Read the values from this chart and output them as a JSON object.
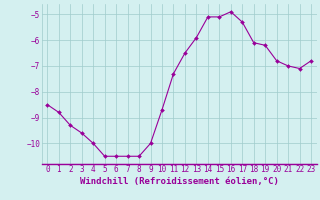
{
  "x": [
    0,
    1,
    2,
    3,
    4,
    5,
    6,
    7,
    8,
    9,
    10,
    11,
    12,
    13,
    14,
    15,
    16,
    17,
    18,
    19,
    20,
    21,
    22,
    23
  ],
  "y": [
    -8.5,
    -8.8,
    -9.3,
    -9.6,
    -10.0,
    -10.5,
    -10.5,
    -10.5,
    -10.5,
    -10.0,
    -8.7,
    -7.3,
    -6.5,
    -5.9,
    -5.1,
    -5.1,
    -4.9,
    -5.3,
    -6.1,
    -6.2,
    -6.8,
    -7.0,
    -7.1,
    -6.8
  ],
  "line_color": "#990099",
  "marker": "D",
  "marker_size": 2.0,
  "bg_color": "#d4f0f0",
  "grid_color": "#a0cccc",
  "xlabel": "Windchill (Refroidissement éolien,°C)",
  "xlabel_fontsize": 6.5,
  "tick_fontsize": 5.5,
  "ylim": [
    -10.8,
    -4.6
  ],
  "yticks": [
    -10,
    -9,
    -8,
    -7,
    -6,
    -5
  ],
  "xlim": [
    -0.5,
    23.5
  ],
  "figwidth": 3.2,
  "figheight": 2.0,
  "dpi": 100
}
